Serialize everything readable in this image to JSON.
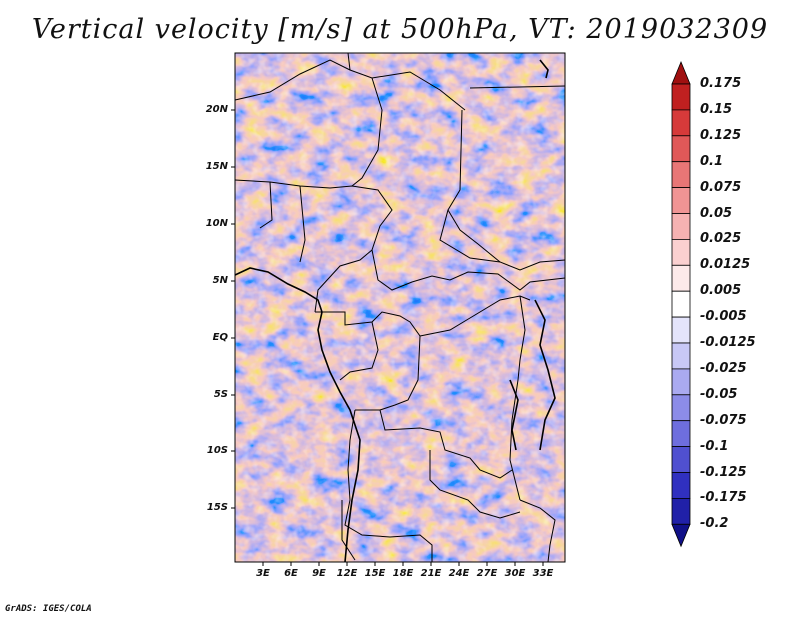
{
  "title": "Vertical velocity [m/s] at 500hPa, VT: 2019032309",
  "credit": "GrADS: IGES/COLA",
  "y_ticks": [
    "20N",
    "15N",
    "10N",
    "5N",
    "EQ",
    "5S",
    "10S",
    "15S"
  ],
  "x_ticks": [
    "3E",
    "6E",
    "9E",
    "12E",
    "15E",
    "18E",
    "21E",
    "24E",
    "27E",
    "30E",
    "33E"
  ],
  "colorbar": {
    "levels": [
      "0.175",
      "0.15",
      "0.125",
      "0.1",
      "0.075",
      "0.05",
      "0.025",
      "0.0125",
      "0.005",
      "-0.005",
      "-0.0125",
      "-0.025",
      "-0.05",
      "-0.075",
      "-0.1",
      "-0.125",
      "-0.175",
      "-0.2"
    ],
    "colors": [
      "#a01010",
      "#c02020",
      "#d63a3a",
      "#e05858",
      "#e87676",
      "#f09494",
      "#f6b2b2",
      "#fbd0d0",
      "#fdeaea",
      "#ffffff",
      "#e4e4fb",
      "#c8c8f6",
      "#aaaaf0",
      "#8c8ce8",
      "#6e6ede",
      "#5050d0",
      "#3030c0",
      "#2020a8",
      "#101088"
    ]
  }
}
